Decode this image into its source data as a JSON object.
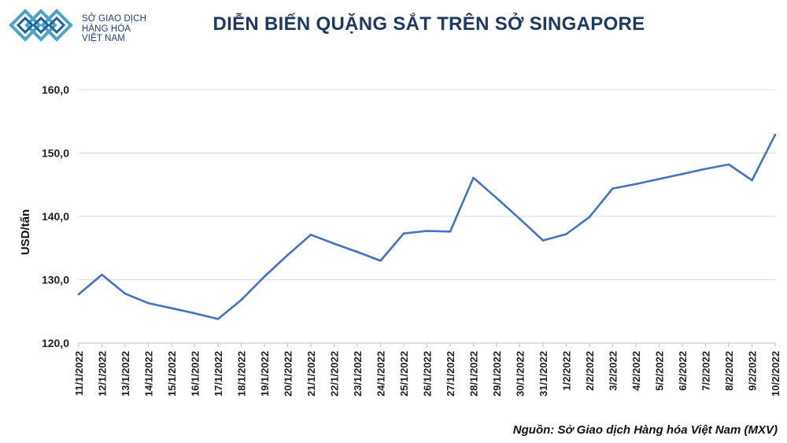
{
  "header": {
    "logo_lines": [
      "SỞ GIAO DỊCH",
      "HÀNG HÓA",
      "VIỆT NAM"
    ],
    "title": "DIỄN BIẾN QUẶNG SẮT TRÊN SỞ SINGAPORE"
  },
  "colors": {
    "line": "#4472c4",
    "title": "#1f3864",
    "grid": "#d9d9d9",
    "logo": "#1f3f7a"
  },
  "chart_data": {
    "type": "line",
    "title": "DIỄN BIẾN QUẶNG SẮT TRÊN SỞ SINGAPORE",
    "xlabel": "",
    "ylabel": "USD/tấn",
    "ylim": [
      120,
      160
    ],
    "yticks": [
      "120,0",
      "130,0",
      "140,0",
      "150,0",
      "160,0"
    ],
    "grid": true,
    "legend": "none",
    "categories": [
      "11/1/2022",
      "12/1/2022",
      "13/1/2022",
      "14/1/2022",
      "15/1/2022",
      "16/1/2022",
      "17/1/2022",
      "18/1/2022",
      "19/1/2022",
      "20/1/2022",
      "21/1/2022",
      "22/1/2022",
      "23/1/2022",
      "24/1/2022",
      "25/1/2022",
      "26/1/2022",
      "27/1/2022",
      "28/1/2022",
      "29/1/2022",
      "30/1/2022",
      "31/1/2022",
      "1/2/2022",
      "2/2/2022",
      "3/2/2022",
      "4/2/2022",
      "5/2/2022",
      "6/2/2022",
      "7/2/2022",
      "8/2/2022",
      "9/2/2022",
      "10/2/2022"
    ],
    "series": [
      {
        "values": [
          127.7,
          130.8,
          127.8,
          126.3,
          125.5,
          124.7,
          123.8,
          126.8,
          130.5,
          133.9,
          137.1,
          135.7,
          134.4,
          133.0,
          137.3,
          137.7,
          137.6,
          146.1,
          142.9,
          139.6,
          136.2,
          137.2,
          139.9,
          144.4,
          145.1,
          145.9,
          146.7,
          147.5,
          148.2,
          145.7,
          152.9
        ]
      }
    ],
    "source": "Nguồn: Sở Giao dịch Hàng hóa Việt Nam (MXV)"
  }
}
